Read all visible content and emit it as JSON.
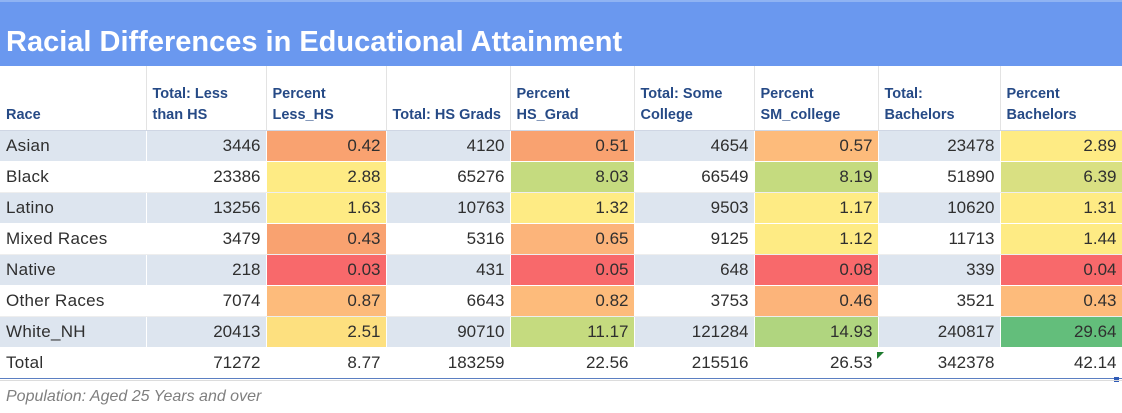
{
  "title": "Racial Differences in Educational Attainment",
  "columns": [
    "Race",
    "Total: Less than HS",
    "Percent Less_HS",
    "Total: HS Grads",
    "Percent HS_Grad",
    "Total: Some College",
    "Percent SM_college",
    "Total: Bachelors",
    "Percent Bachelors"
  ],
  "rows": [
    {
      "race": "Asian",
      "values": [
        "3446",
        "0.42",
        "4120",
        "0.51",
        "4654",
        "0.57",
        "23478",
        "2.89"
      ]
    },
    {
      "race": "Black",
      "values": [
        "23386",
        "2.88",
        "65276",
        "8.03",
        "66549",
        "8.19",
        "51890",
        "6.39"
      ]
    },
    {
      "race": "Latino",
      "values": [
        "13256",
        "1.63",
        "10763",
        "1.32",
        "9503",
        "1.17",
        "10620",
        "1.31"
      ]
    },
    {
      "race": "Mixed Races",
      "values": [
        "3479",
        "0.43",
        "5316",
        "0.65",
        "9125",
        "1.12",
        "11713",
        "1.44"
      ]
    },
    {
      "race": "Native",
      "values": [
        "218",
        "0.03",
        "431",
        "0.05",
        "648",
        "0.08",
        "339",
        "0.04"
      ]
    },
    {
      "race": "Other Races",
      "values": [
        "7074",
        "0.87",
        "6643",
        "0.82",
        "3753",
        "0.46",
        "3521",
        "0.43"
      ]
    },
    {
      "race": "White_NH",
      "values": [
        "20413",
        "2.51",
        "90710",
        "11.17",
        "121284",
        "14.93",
        "240817",
        "29.64"
      ]
    }
  ],
  "total_row": {
    "race": "Total",
    "values": [
      "71272",
      "8.77",
      "183259",
      "22.56",
      "215516",
      "26.53",
      "342378",
      "42.14"
    ]
  },
  "heatmap_colors": [
    [
      "#f9a270",
      "#f9a270",
      "#fdbb7b",
      "#feeb84"
    ],
    [
      "#feeb84",
      "#c5db7f",
      "#c5db7f",
      "#d9e082"
    ],
    [
      "#feeb84",
      "#feeb84",
      "#feeb84",
      "#feeb84"
    ],
    [
      "#f9a270",
      "#fcb47a",
      "#feeb84",
      "#feeb84"
    ],
    [
      "#f8696b",
      "#f8696b",
      "#f8696b",
      "#f8696b"
    ],
    [
      "#fdbb7b",
      "#fdbb7b",
      "#fcb47a",
      "#fdbb7b"
    ],
    [
      "#fde07f",
      "#c5db7f",
      "#b0d57f",
      "#63be7b"
    ]
  ],
  "colors": {
    "title_bar": "#6a98ef",
    "header_text": "#264a86",
    "band_row": "#dde5ef",
    "note_text": "#7f7f7f"
  },
  "footnote": "Population: Aged 25 Years and over"
}
